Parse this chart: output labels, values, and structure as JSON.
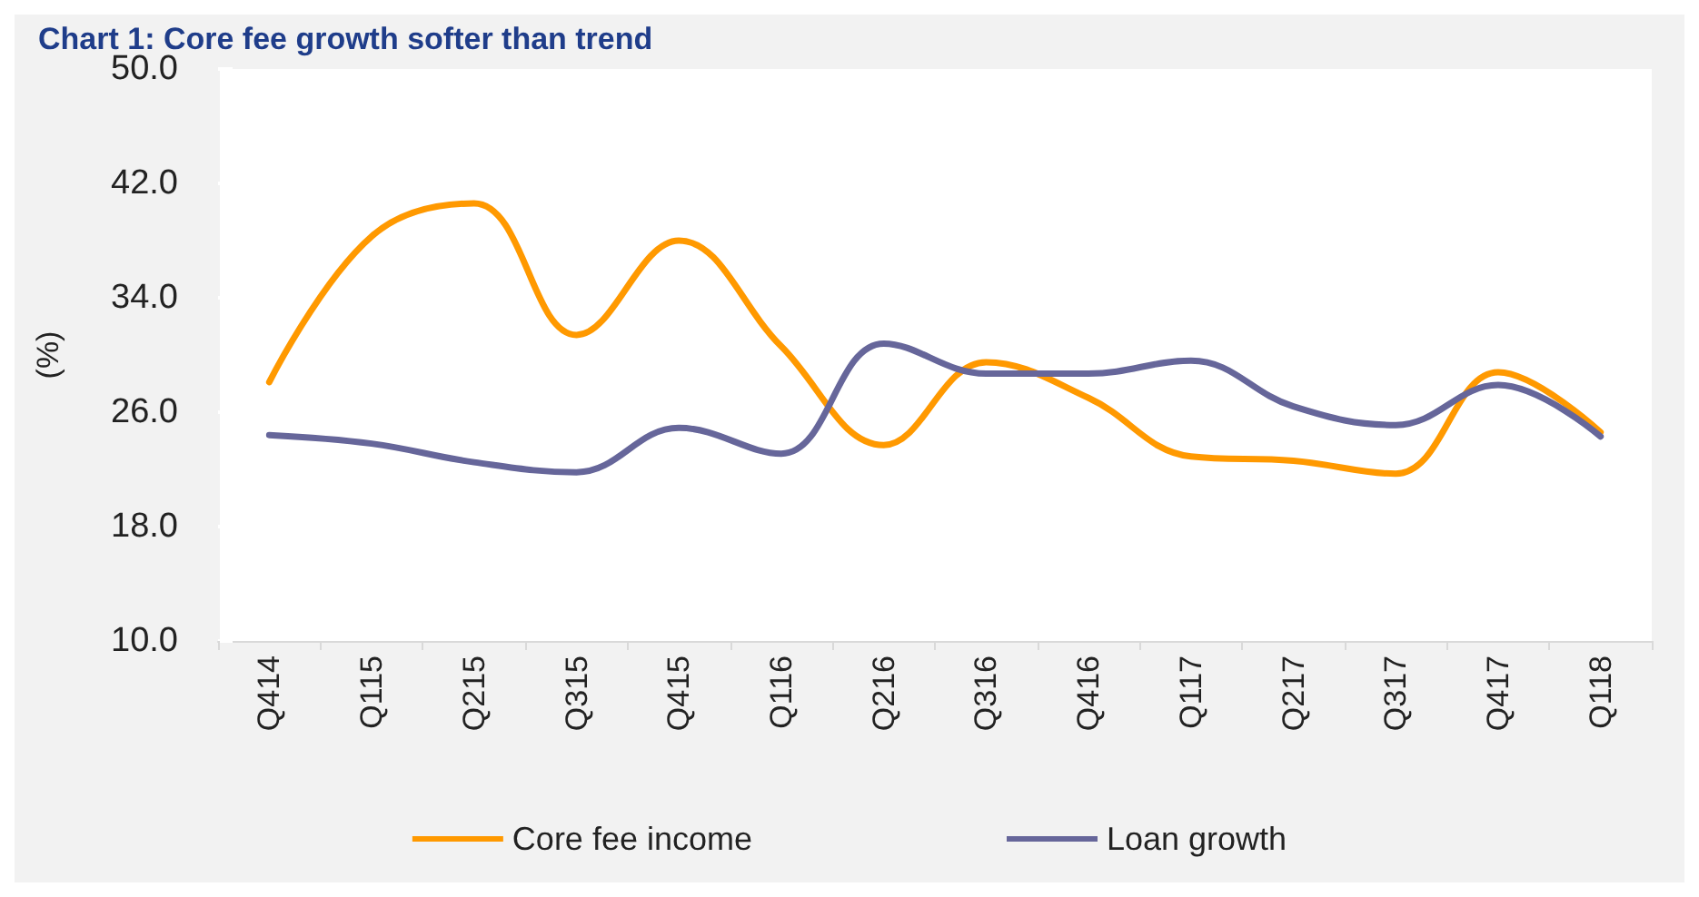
{
  "chart_data": {
    "type": "line",
    "title": "Chart 1: Core fee growth softer than trend",
    "ylabel": "(%)",
    "categories": [
      "Q414",
      "Q115",
      "Q215",
      "Q315",
      "Q415",
      "Q116",
      "Q216",
      "Q316",
      "Q416",
      "Q117",
      "Q217",
      "Q317",
      "Q417",
      "Q118"
    ],
    "series": [
      {
        "name": "Core fee income",
        "color": "#ff9900",
        "values": [
          28.1,
          38.3,
          40.6,
          31.4,
          38.0,
          30.6,
          23.7,
          29.5,
          27.0,
          22.9,
          22.6,
          21.7,
          28.8,
          24.6
        ]
      },
      {
        "name": "Loan growth",
        "color": "#66669a",
        "values": [
          24.4,
          23.8,
          22.5,
          21.8,
          24.9,
          23.1,
          30.8,
          28.7,
          28.7,
          29.6,
          26.4,
          25.1,
          27.9,
          24.3
        ]
      }
    ],
    "ylim": [
      10,
      50
    ],
    "yticks": [
      {
        "value": 10,
        "label": "10.0"
      },
      {
        "value": 18,
        "label": "18.0"
      },
      {
        "value": 26,
        "label": "26.0"
      },
      {
        "value": 34,
        "label": "34.0"
      },
      {
        "value": 42,
        "label": "42.0"
      },
      {
        "value": 50,
        "label": "50.0"
      }
    ],
    "grid": false,
    "legend": "bottom",
    "marker": "none",
    "line_style": "solid"
  }
}
